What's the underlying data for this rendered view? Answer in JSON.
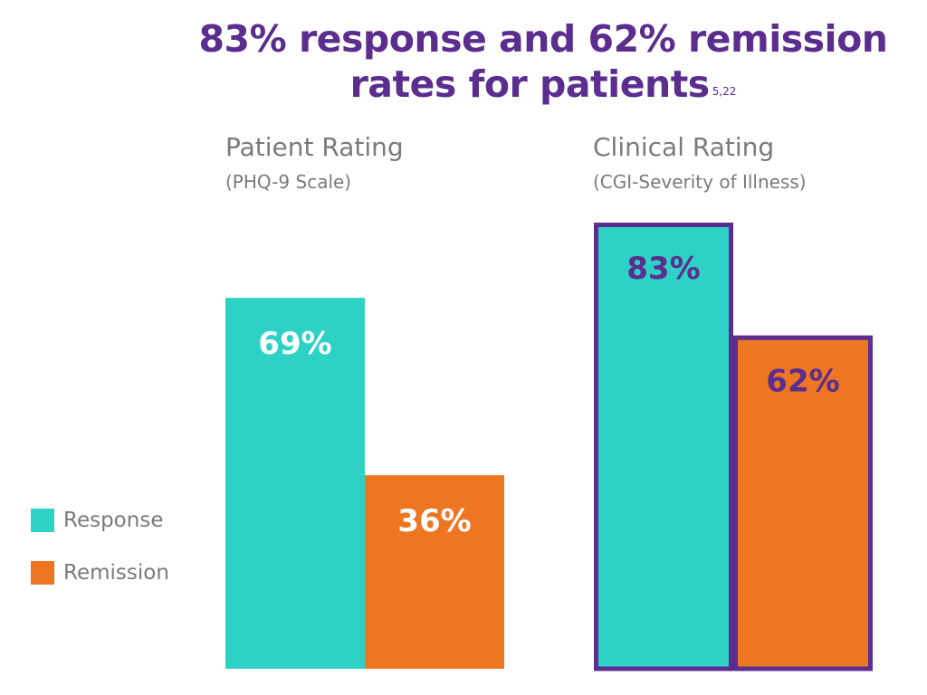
{
  "title": {
    "line1": "83% response and 62% remission",
    "line2": "rates for patients",
    "superscript": "5,22"
  },
  "colors": {
    "title": "#5b2d8e",
    "response": "#2dd1c6",
    "remission": "#ed7623",
    "highlight_border": "#5b2d8e",
    "label_on_left": "#ffffff",
    "label_on_right": "#5b2d8e",
    "text_gray": "#7a7a7a"
  },
  "legend": [
    {
      "name": "Response",
      "color": "#2dd1c6"
    },
    {
      "name": "Remission",
      "color": "#ed7623"
    }
  ],
  "chart_data": [
    {
      "type": "bar",
      "title": "Patient Rating",
      "subtitle": "(PHQ-9 Scale)",
      "categories": [
        "Response",
        "Remission"
      ],
      "values": [
        69,
        36
      ],
      "labels": [
        "69%",
        "36%"
      ],
      "ylim": [
        0,
        100
      ],
      "highlighted": false
    },
    {
      "type": "bar",
      "title": "Clinical Rating",
      "subtitle": "(CGI-Severity of Illness)",
      "categories": [
        "Response",
        "Remission"
      ],
      "values": [
        83,
        62
      ],
      "labels": [
        "83%",
        "62%"
      ],
      "ylim": [
        0,
        100
      ],
      "highlighted": true
    }
  ]
}
